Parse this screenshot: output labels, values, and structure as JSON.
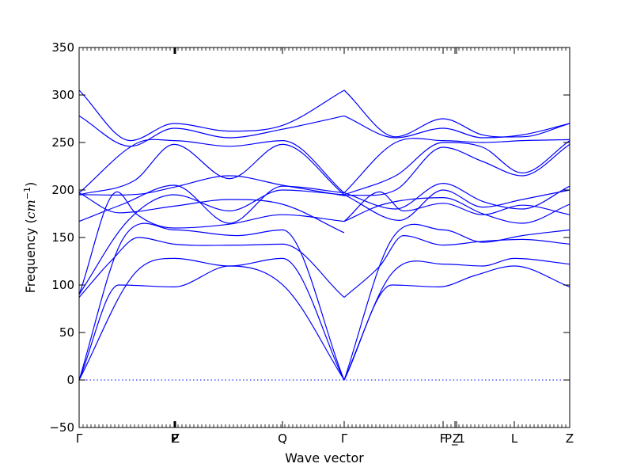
{
  "chart_data": {
    "type": "line",
    "title": "",
    "xlabel": "Wave vector",
    "ylabel": "Frequency ($cm^{-1}$)",
    "ylabel_display": {
      "prefix": "Frequency (",
      "math": "cm",
      "sup": "−1",
      "suffix": ")"
    },
    "ylim": [
      -50,
      350
    ],
    "yticks": [
      -50,
      0,
      50,
      100,
      150,
      200,
      250,
      300,
      350
    ],
    "xlim": [
      0,
      6.2
    ],
    "xticks": [
      {
        "x": 0.0,
        "label": "Γ"
      },
      {
        "x": 1.2,
        "label": "F"
      },
      {
        "x": 1.21,
        "label": "P"
      },
      {
        "x": 1.22,
        "label": "Z"
      },
      {
        "x": 2.57,
        "label": "Q"
      },
      {
        "x": 3.35,
        "label": "Γ"
      },
      {
        "x": 4.6,
        "label": "F"
      },
      {
        "x": 4.75,
        "label": "P_1"
      },
      {
        "x": 4.77,
        "label": "Z"
      },
      {
        "x": 5.5,
        "label": "L"
      },
      {
        "x": 6.2,
        "label": "Z"
      }
    ],
    "zero_line": true,
    "series": [
      {
        "x": [
          0,
          0.55,
          1.2,
          2.0,
          2.57,
          3.35
        ],
        "y": [
          0,
          148,
          158,
          152,
          158,
          0
        ]
      },
      {
        "x": [
          0,
          0.7,
          1.2,
          1.9,
          2.57,
          3.35
        ],
        "y": [
          0,
          112,
          128,
          120,
          128,
          0
        ]
      },
      {
        "x": [
          0,
          0.5,
          1.2,
          1.9,
          2.6,
          3.35
        ],
        "y": [
          0,
          100,
          98,
          120,
          98,
          0
        ]
      },
      {
        "x": [
          3.35,
          3.95,
          4.6,
          5.1,
          5.6,
          6.2
        ],
        "y": [
          0,
          148,
          158,
          145,
          152,
          158
        ]
      },
      {
        "x": [
          3.35,
          3.95,
          4.6,
          5.1,
          5.5,
          6.2
        ],
        "y": [
          0,
          112,
          122,
          120,
          128,
          122
        ]
      },
      {
        "x": [
          3.35,
          3.95,
          4.55,
          5.0,
          5.5,
          6.2
        ],
        "y": [
          0,
          100,
          98,
          110,
          120,
          98
        ]
      },
      {
        "x": [
          0,
          0.4,
          0.75,
          1.2,
          2.0,
          2.57,
          3.35
        ],
        "y": [
          87,
          125,
          150,
          143,
          142,
          143,
          87
        ]
      },
      {
        "x": [
          3.35,
          3.8,
          4.1,
          4.6,
          5.1,
          5.6,
          6.2
        ],
        "y": [
          87,
          120,
          152,
          142,
          146,
          148,
          143
        ]
      },
      {
        "x": [
          0,
          0.48,
          0.72,
          1.2,
          1.9,
          2.57,
          3.35
        ],
        "y": [
          90,
          198,
          175,
          160,
          164,
          174,
          167
        ]
      },
      {
        "x": [
          3.35,
          3.8,
          4.1,
          4.6,
          5.1,
          5.6,
          6.2
        ],
        "y": [
          167,
          198,
          178,
          186,
          174,
          184,
          174
        ]
      },
      {
        "x": [
          0,
          0.62,
          1.2,
          1.9,
          2.57,
          3.35
        ],
        "y": [
          90,
          168,
          195,
          178,
          200,
          195
        ]
      },
      {
        "x": [
          3.35,
          4.05,
          4.6,
          5.1,
          5.6,
          6.2
        ],
        "y": [
          195,
          168,
          200,
          182,
          190,
          200
        ]
      },
      {
        "x": [
          0,
          0.55,
          1.2,
          1.9,
          2.57,
          3.35
        ],
        "y": [
          167,
          185,
          205,
          165,
          204,
          197
        ]
      },
      {
        "x": [
          3.35,
          4.0,
          4.6,
          5.1,
          5.6,
          6.2
        ],
        "y": [
          197,
          180,
          207,
          188,
          180,
          204
        ]
      },
      {
        "x": [
          0,
          0.5,
          1.2,
          1.9,
          2.57,
          3.35
        ],
        "y": [
          197,
          176,
          183,
          190,
          185,
          155
        ]
      },
      {
        "x": [
          3.35,
          3.85,
          4.6,
          5.1,
          5.6,
          6.2
        ],
        "y": [
          167,
          185,
          192,
          175,
          165,
          185
        ]
      },
      {
        "x": [
          0,
          0.8,
          1.2,
          1.9,
          2.57,
          3.35
        ],
        "y": [
          195,
          196,
          203,
          215,
          205,
          194
        ]
      },
      {
        "x": [
          3.35,
          4.0,
          4.6,
          5.1,
          5.6,
          6.2
        ],
        "y": [
          194,
          200,
          245,
          230,
          215,
          248
        ]
      },
      {
        "x": [
          0,
          0.7,
          1.2,
          1.9,
          2.57,
          3.35
        ],
        "y": [
          195,
          210,
          248,
          212,
          248,
          195
        ]
      },
      {
        "x": [
          3.35,
          4.0,
          4.6,
          5.1,
          5.6,
          6.2
        ],
        "y": [
          195,
          215,
          250,
          245,
          218,
          252
        ]
      },
      {
        "x": [
          0,
          0.75,
          1.2,
          1.9,
          2.57,
          3.35
        ],
        "y": [
          197,
          250,
          252,
          246,
          252,
          197
        ]
      },
      {
        "x": [
          3.35,
          4.0,
          4.6,
          5.1,
          5.6,
          6.2
        ],
        "y": [
          197,
          250,
          252,
          250,
          252,
          253
        ]
      },
      {
        "x": [
          0,
          0.65,
          1.2,
          1.9,
          2.57,
          3.35
        ],
        "y": [
          278,
          246,
          265,
          255,
          264,
          278
        ]
      },
      {
        "x": [
          3.35,
          4.0,
          4.6,
          5.1,
          5.6,
          6.2
        ],
        "y": [
          278,
          255,
          265,
          255,
          258,
          270
        ]
      },
      {
        "x": [
          0,
          0.65,
          1.2,
          1.9,
          2.57,
          3.35
        ],
        "y": [
          305,
          252,
          270,
          262,
          268,
          305
        ]
      },
      {
        "x": [
          3.35,
          4.0,
          4.6,
          5.1,
          5.6,
          6.2
        ],
        "y": [
          305,
          256,
          275,
          258,
          256,
          270
        ]
      }
    ],
    "line_color": "#0000ff",
    "grid": false,
    "legend": false
  }
}
